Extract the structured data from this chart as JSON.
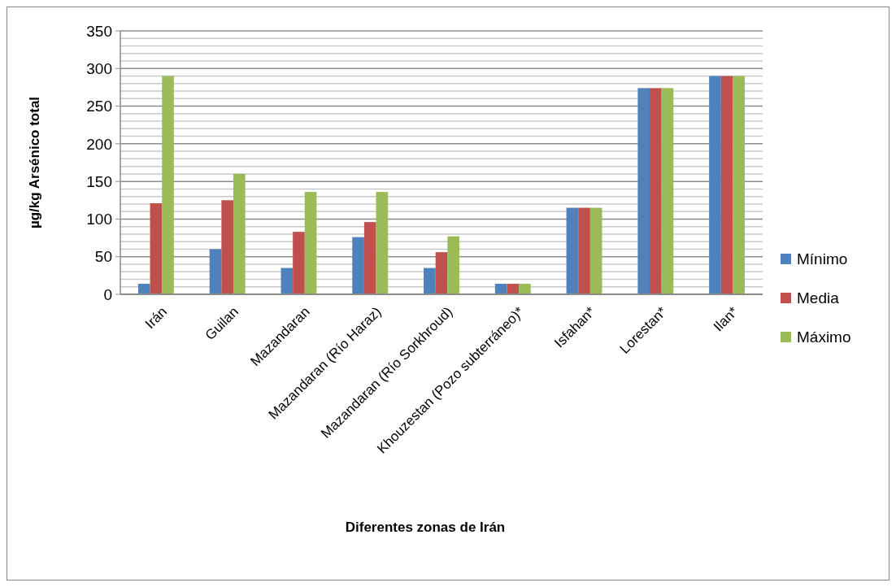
{
  "chart_data": {
    "type": "bar",
    "xlabel": "Diferentes zonas de Irán",
    "ylabel": "µg/kg Arsénico total",
    "categories": [
      "Irán",
      "Guilan",
      "Mazandaran",
      "Mazandaran (Río Haraz)",
      "Mazandaran (Río Sorkhroud)",
      "Khouzestan (Pozo subterráneo)*",
      "Isfahan*",
      "Lorestan*",
      "Ilan*"
    ],
    "series": [
      {
        "name": "Mínimo",
        "color": "#4f81bd",
        "values": [
          14,
          60,
          35,
          76,
          35,
          14,
          115,
          274,
          290
        ]
      },
      {
        "name": "Media",
        "color": "#c0504d",
        "values": [
          121,
          125,
          83,
          96,
          56,
          14,
          115,
          274,
          290
        ]
      },
      {
        "name": "Máximo",
        "color": "#9bbb59",
        "values": [
          290,
          160,
          136,
          136,
          77,
          14,
          115,
          274,
          290
        ]
      }
    ],
    "ylim": [
      0,
      350
    ],
    "yticks": [
      0,
      {
        "value": 10,
        "label": null
      },
      {
        "value": 20,
        "label": null
      },
      {
        "value": 30,
        "label": null
      },
      {
        "value": 40,
        "label": null
      },
      50,
      {
        "value": 60,
        "label": null
      },
      {
        "value": 70,
        "label": null
      },
      {
        "value": 80,
        "label": null
      },
      {
        "value": 90,
        "label": null
      },
      100,
      {
        "value": 110,
        "label": null
      },
      {
        "value": 120,
        "label": null
      },
      {
        "value": 130,
        "label": null
      },
      {
        "value": 140,
        "label": null
      },
      150,
      {
        "value": 160,
        "label": null
      },
      {
        "value": 170,
        "label": null
      },
      {
        "value": 180,
        "label": null
      },
      {
        "value": 190,
        "label": null
      },
      200,
      {
        "value": 210,
        "label": null
      },
      {
        "value": 220,
        "label": null
      },
      {
        "value": 230,
        "label": null
      },
      {
        "value": 240,
        "label": null
      },
      250,
      {
        "value": 260,
        "label": null
      },
      {
        "value": 270,
        "label": null
      },
      {
        "value": 280,
        "label": null
      },
      {
        "value": 290,
        "label": null
      },
      300,
      {
        "value": 310,
        "label": null
      },
      {
        "value": 320,
        "label": null
      },
      {
        "value": 330,
        "label": null
      },
      {
        "value": 340,
        "label": null
      },
      350
    ],
    "grid": "y",
    "legend": "right"
  }
}
